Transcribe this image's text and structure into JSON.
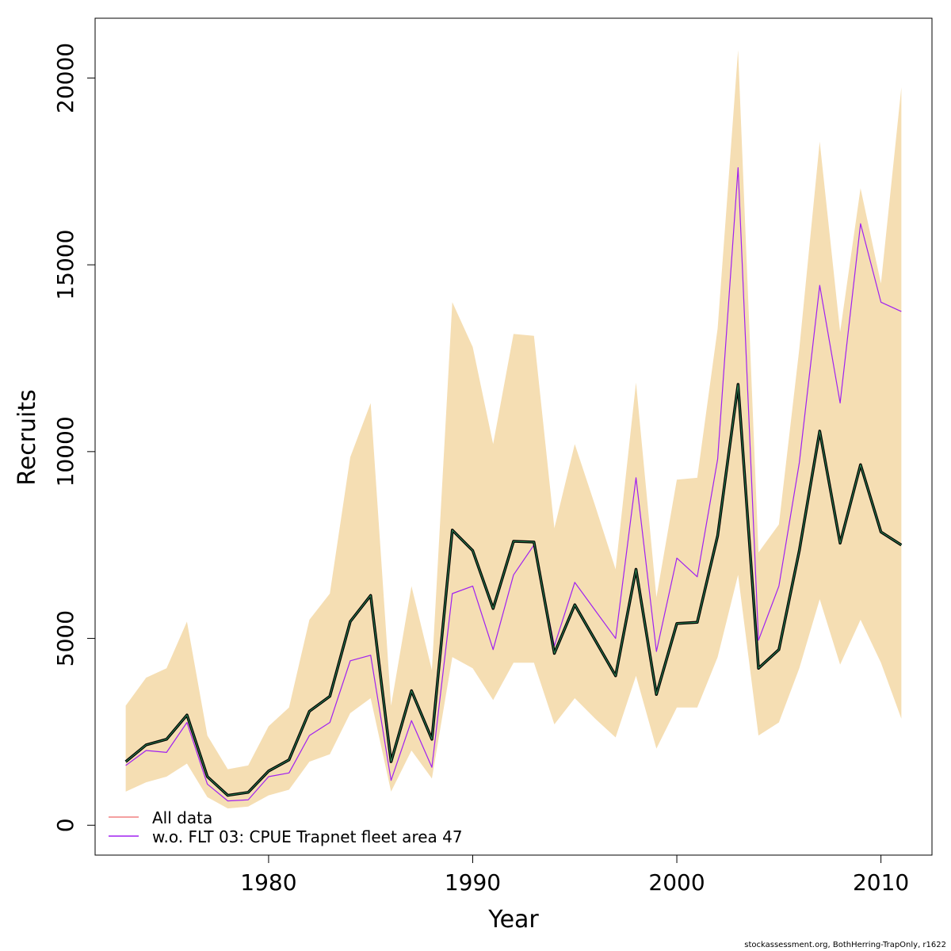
{
  "chart_data": {
    "type": "line",
    "xlabel": "Year",
    "ylabel": "Recruits",
    "xlim": [
      1971.5,
      2012.5
    ],
    "ylim": [
      -800,
      21600
    ],
    "x_ticks": [
      1980,
      1990,
      2000,
      2010
    ],
    "y_ticks": [
      0,
      5000,
      10000,
      15000,
      20000
    ],
    "grid": false,
    "legend_position": "bottom-left",
    "colors": {
      "ci_band": "#f5deb3",
      "all_data_line": "#000000",
      "all_data_inner": "#2e8b57",
      "all_data_legend": "#f08080",
      "wo_flt03_line": "#a020f0"
    },
    "x": [
      1973,
      1974,
      1975,
      1976,
      1977,
      1978,
      1979,
      1980,
      1981,
      1982,
      1983,
      1984,
      1985,
      1986,
      1987,
      1988,
      1989,
      1990,
      1991,
      1992,
      1993,
      1994,
      1995,
      1996,
      1997,
      1998,
      1999,
      2000,
      2001,
      2002,
      2003,
      2004,
      2005,
      2006,
      2007,
      2008,
      2009,
      2010,
      2011
    ],
    "series": [
      {
        "name": "All data",
        "values": [
          1700,
          2150,
          2300,
          2950,
          1300,
          800,
          880,
          1450,
          1750,
          3050,
          3450,
          5450,
          6150,
          1700,
          3600,
          2300,
          7900,
          7350,
          5800,
          7600,
          7580,
          4600,
          5900,
          4950,
          4000,
          6850,
          3500,
          5400,
          5430,
          7750,
          11800,
          4200,
          4700,
          7350,
          10550,
          7550,
          9650,
          7850,
          7500
        ]
      },
      {
        "name": "w.o. FLT 03: CPUE Trapnet fleet area 47",
        "values": [
          1600,
          2000,
          1950,
          2750,
          1100,
          650,
          680,
          1300,
          1400,
          2400,
          2750,
          4400,
          4550,
          1200,
          2800,
          1550,
          6200,
          6400,
          4700,
          6700,
          7500,
          4800,
          6500,
          5750,
          5000,
          9300,
          4650,
          7150,
          6650,
          9800,
          17600,
          4950,
          6400,
          9700,
          14450,
          11300,
          16100,
          14000,
          13750
        ]
      }
    ],
    "ci_band": {
      "lower": [
        900,
        1150,
        1300,
        1650,
        750,
        450,
        500,
        800,
        950,
        1700,
        1900,
        3000,
        3400,
        900,
        2000,
        1250,
        4500,
        4200,
        3350,
        4350,
        4350,
        2700,
        3400,
        2850,
        2350,
        4000,
        2050,
        3150,
        3150,
        4500,
        6700,
        2400,
        2750,
        4200,
        6050,
        4300,
        5500,
        4350,
        2850
      ],
      "upper": [
        3200,
        3950,
        4200,
        5450,
        2400,
        1500,
        1600,
        2650,
        3150,
        5500,
        6200,
        9850,
        11300,
        3200,
        6400,
        4150,
        14000,
        12800,
        10200,
        13150,
        13100,
        7950,
        10200,
        8550,
        6850,
        11850,
        6100,
        9250,
        9300,
        13300,
        20750,
        7300,
        8050,
        12750,
        18300,
        13200,
        17050,
        14500,
        19750
      ]
    }
  },
  "footer": "stockassessment.org, BothHerring-TrapOnly, r1622"
}
